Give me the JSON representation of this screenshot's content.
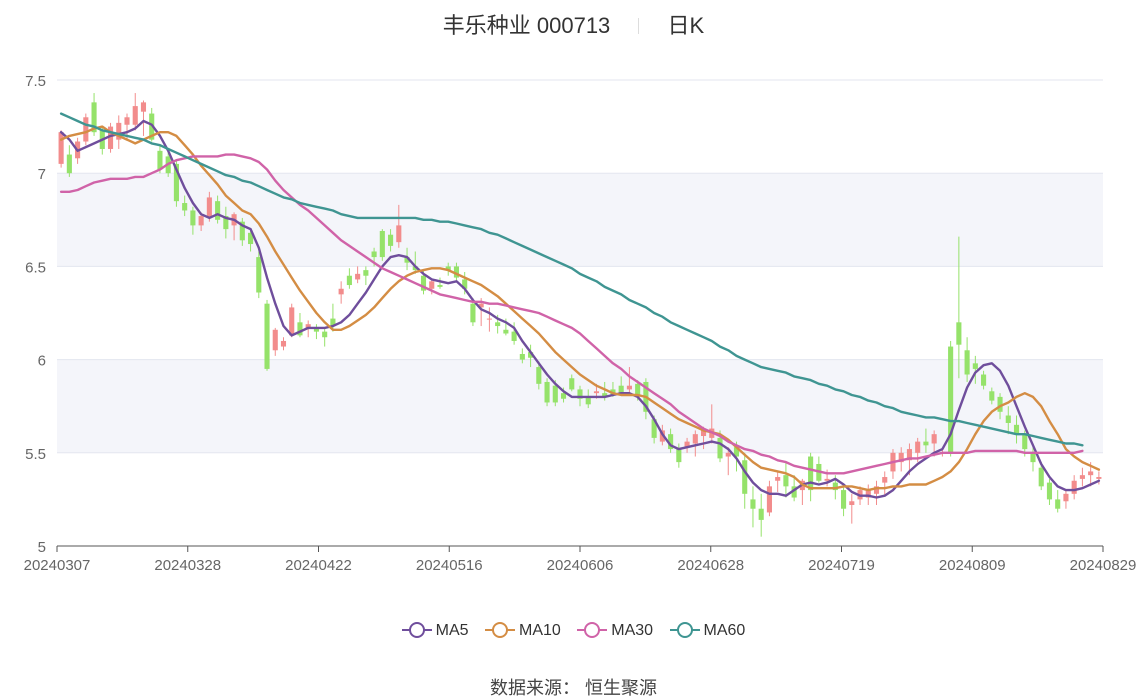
{
  "title": {
    "stock": "丰乐种业 000713",
    "period": "日K"
  },
  "source": "数据来源： 恒生聚源",
  "colors": {
    "up": "#f28c8c",
    "down": "#95e26a",
    "grid": "#e3e6ef",
    "band": "#f4f5fa",
    "axis": "#666666"
  },
  "legend": [
    {
      "label": "MA5",
      "color": "#6f4e9c"
    },
    {
      "label": "MA10",
      "color": "#d48d44"
    },
    {
      "label": "MA30",
      "color": "#d063a8"
    },
    {
      "label": "MA60",
      "color": "#3f9592"
    }
  ],
  "chart_data": {
    "type": "candlestick",
    "title": "丰乐种业 000713 日K",
    "x_tick_labels": [
      "20240307",
      "20240328",
      "20240422",
      "20240516",
      "20240606",
      "20240628",
      "20240719",
      "20240809",
      "20240829"
    ],
    "y_tick_labels": [
      "5",
      "5.5",
      "6",
      "6.5",
      "7",
      "7.5"
    ],
    "ylim": [
      5,
      7.5
    ],
    "candles_ohlc": [
      [
        7.05,
        7.23,
        7.03,
        7.22
      ],
      [
        7.1,
        7.15,
        6.98,
        7.0
      ],
      [
        7.08,
        7.19,
        7.05,
        7.17
      ],
      [
        7.17,
        7.32,
        7.15,
        7.3
      ],
      [
        7.38,
        7.43,
        7.2,
        7.22
      ],
      [
        7.23,
        7.25,
        7.1,
        7.13
      ],
      [
        7.13,
        7.27,
        7.11,
        7.25
      ],
      [
        7.18,
        7.31,
        7.13,
        7.27
      ],
      [
        7.26,
        7.32,
        7.18,
        7.3
      ],
      [
        7.26,
        7.43,
        7.23,
        7.36
      ],
      [
        7.33,
        7.39,
        7.2,
        7.38
      ],
      [
        7.32,
        7.35,
        7.17,
        7.18
      ],
      [
        7.12,
        7.15,
        7.0,
        7.02
      ],
      [
        7.09,
        7.12,
        6.98,
        7.0
      ],
      [
        7.05,
        7.07,
        6.82,
        6.85
      ],
      [
        6.84,
        6.88,
        6.77,
        6.8
      ],
      [
        6.8,
        6.82,
        6.67,
        6.72
      ],
      [
        6.72,
        6.79,
        6.69,
        6.77
      ],
      [
        6.76,
        6.9,
        6.74,
        6.87
      ],
      [
        6.85,
        6.88,
        6.73,
        6.75
      ],
      [
        6.77,
        6.82,
        6.65,
        6.7
      ],
      [
        6.72,
        6.79,
        6.64,
        6.78
      ],
      [
        6.74,
        6.76,
        6.61,
        6.64
      ],
      [
        6.68,
        6.7,
        6.58,
        6.62
      ],
      [
        6.55,
        6.58,
        6.33,
        6.36
      ],
      [
        6.3,
        6.32,
        5.94,
        5.95
      ],
      [
        6.05,
        6.17,
        6.02,
        6.16
      ],
      [
        6.07,
        6.12,
        6.05,
        6.1
      ],
      [
        6.13,
        6.3,
        6.12,
        6.28
      ],
      [
        6.2,
        6.25,
        6.12,
        6.13
      ],
      [
        6.17,
        6.21,
        6.12,
        6.19
      ],
      [
        6.17,
        6.19,
        6.11,
        6.15
      ],
      [
        6.15,
        6.17,
        6.07,
        6.12
      ],
      [
        6.22,
        6.3,
        6.15,
        6.18
      ],
      [
        6.35,
        6.42,
        6.3,
        6.38
      ],
      [
        6.45,
        6.49,
        6.38,
        6.4
      ],
      [
        6.43,
        6.5,
        6.41,
        6.46
      ],
      [
        6.48,
        6.5,
        6.4,
        6.45
      ],
      [
        6.58,
        6.6,
        6.5,
        6.55
      ],
      [
        6.69,
        6.7,
        6.53,
        6.55
      ],
      [
        6.67,
        6.7,
        6.58,
        6.61
      ],
      [
        6.63,
        6.83,
        6.6,
        6.72
      ],
      [
        6.55,
        6.6,
        6.48,
        6.52
      ],
      [
        6.5,
        6.58,
        6.46,
        6.48
      ],
      [
        6.45,
        6.48,
        6.35,
        6.37
      ],
      [
        6.38,
        6.43,
        6.35,
        6.42
      ],
      [
        6.4,
        6.44,
        6.38,
        6.39
      ],
      [
        6.5,
        6.52,
        6.45,
        6.48
      ],
      [
        6.5,
        6.52,
        6.42,
        6.44
      ],
      [
        6.43,
        6.47,
        6.35,
        6.38
      ],
      [
        6.3,
        6.33,
        6.18,
        6.2
      ],
      [
        6.28,
        6.33,
        6.18,
        6.3
      ],
      [
        6.22,
        6.28,
        6.15,
        6.22
      ],
      [
        6.2,
        6.24,
        6.14,
        6.18
      ],
      [
        6.16,
        6.22,
        6.13,
        6.14
      ],
      [
        6.15,
        6.2,
        6.08,
        6.1
      ],
      [
        6.03,
        6.06,
        5.98,
        6.0
      ],
      [
        6.04,
        6.08,
        5.96,
        6.01
      ],
      [
        5.96,
        5.99,
        5.84,
        5.87
      ],
      [
        5.88,
        5.9,
        5.75,
        5.77
      ],
      [
        5.86,
        5.89,
        5.75,
        5.77
      ],
      [
        5.82,
        5.85,
        5.77,
        5.79
      ],
      [
        5.9,
        5.92,
        5.83,
        5.84
      ],
      [
        5.84,
        5.86,
        5.75,
        5.79
      ],
      [
        5.8,
        5.84,
        5.74,
        5.76
      ],
      [
        5.82,
        5.87,
        5.79,
        5.83
      ],
      [
        5.82,
        5.88,
        5.78,
        5.8
      ],
      [
        5.84,
        5.88,
        5.8,
        5.81
      ],
      [
        5.86,
        5.91,
        5.81,
        5.82
      ],
      [
        5.84,
        5.96,
        5.82,
        5.86
      ],
      [
        5.87,
        5.89,
        5.78,
        5.8
      ],
      [
        5.88,
        5.9,
        5.68,
        5.72
      ],
      [
        5.68,
        5.7,
        5.55,
        5.58
      ],
      [
        5.56,
        5.65,
        5.54,
        5.62
      ],
      [
        5.6,
        5.63,
        5.5,
        5.52
      ],
      [
        5.52,
        5.55,
        5.42,
        5.45
      ],
      [
        5.53,
        5.58,
        5.5,
        5.56
      ],
      [
        5.55,
        5.62,
        5.48,
        5.6
      ],
      [
        5.59,
        5.64,
        5.52,
        5.63
      ],
      [
        5.58,
        5.76,
        5.55,
        5.63
      ],
      [
        5.58,
        5.62,
        5.45,
        5.47
      ],
      [
        5.48,
        5.53,
        5.38,
        5.5
      ],
      [
        5.53,
        5.56,
        5.4,
        5.48
      ],
      [
        5.46,
        5.5,
        5.2,
        5.28
      ],
      [
        5.25,
        5.32,
        5.1,
        5.2
      ],
      [
        5.2,
        5.28,
        5.05,
        5.14
      ],
      [
        5.18,
        5.35,
        5.16,
        5.32
      ],
      [
        5.35,
        5.4,
        5.29,
        5.37
      ],
      [
        5.38,
        5.45,
        5.26,
        5.32
      ],
      [
        5.32,
        5.38,
        5.24,
        5.26
      ],
      [
        5.3,
        5.36,
        5.22,
        5.35
      ],
      [
        5.48,
        5.5,
        5.24,
        5.3
      ],
      [
        5.44,
        5.48,
        5.34,
        5.35
      ],
      [
        5.35,
        5.41,
        5.32,
        5.36
      ],
      [
        5.34,
        5.38,
        5.25,
        5.3
      ],
      [
        5.3,
        5.33,
        5.16,
        5.2
      ],
      [
        5.22,
        5.28,
        5.12,
        5.24
      ],
      [
        5.25,
        5.32,
        5.22,
        5.3
      ],
      [
        5.26,
        5.33,
        5.22,
        5.3
      ],
      [
        5.28,
        5.35,
        5.22,
        5.32
      ],
      [
        5.34,
        5.4,
        5.27,
        5.37
      ],
      [
        5.4,
        5.52,
        5.36,
        5.5
      ],
      [
        5.45,
        5.53,
        5.4,
        5.5
      ],
      [
        5.46,
        5.55,
        5.38,
        5.52
      ],
      [
        5.5,
        5.58,
        5.45,
        5.56
      ],
      [
        5.56,
        5.63,
        5.5,
        5.54
      ],
      [
        5.55,
        5.62,
        5.48,
        5.6
      ],
      [
        5.5,
        5.52,
        5.48,
        5.5
      ],
      [
        6.07,
        6.1,
        5.48,
        5.5
      ],
      [
        6.2,
        6.66,
        5.9,
        6.08
      ],
      [
        6.05,
        6.12,
        5.88,
        5.92
      ],
      [
        5.98,
        6.02,
        5.87,
        5.95
      ],
      [
        5.92,
        5.94,
        5.84,
        5.86
      ],
      [
        5.83,
        5.85,
        5.76,
        5.78
      ],
      [
        5.8,
        5.82,
        5.68,
        5.72
      ],
      [
        5.7,
        5.75,
        5.6,
        5.66
      ],
      [
        5.65,
        5.7,
        5.55,
        5.6
      ],
      [
        5.6,
        5.62,
        5.48,
        5.52
      ],
      [
        5.5,
        5.55,
        5.4,
        5.45
      ],
      [
        5.42,
        5.45,
        5.3,
        5.32
      ],
      [
        5.34,
        5.36,
        5.22,
        5.25
      ],
      [
        5.25,
        5.3,
        5.18,
        5.2
      ],
      [
        5.24,
        5.3,
        5.2,
        5.28
      ],
      [
        5.28,
        5.38,
        5.25,
        5.35
      ],
      [
        5.36,
        5.42,
        5.32,
        5.38
      ],
      [
        5.38,
        5.45,
        5.32,
        5.4
      ],
      [
        5.36,
        5.4,
        5.33,
        5.37
      ]
    ],
    "series": [
      {
        "name": "MA5",
        "values": [
          7.22,
          7.18,
          7.12,
          7.14,
          7.16,
          7.18,
          7.2,
          7.21,
          7.22,
          7.24,
          7.28,
          7.26,
          7.2,
          7.12,
          7.02,
          6.92,
          6.84,
          6.78,
          6.76,
          6.78,
          6.76,
          6.75,
          6.72,
          6.7,
          6.6,
          6.44,
          6.3,
          6.18,
          6.13,
          6.15,
          6.17,
          6.17,
          6.17,
          6.18,
          6.2,
          6.24,
          6.3,
          6.36,
          6.43,
          6.5,
          6.55,
          6.56,
          6.55,
          6.5,
          6.46,
          6.43,
          6.42,
          6.41,
          6.42,
          6.38,
          6.32,
          6.27,
          6.25,
          6.22,
          6.2,
          6.17,
          6.1,
          6.04,
          5.98,
          5.92,
          5.87,
          5.83,
          5.8,
          5.8,
          5.8,
          5.8,
          5.8,
          5.81,
          5.82,
          5.82,
          5.8,
          5.75,
          5.68,
          5.6,
          5.54,
          5.52,
          5.53,
          5.54,
          5.55,
          5.56,
          5.55,
          5.52,
          5.47,
          5.4,
          5.34,
          5.3,
          5.28,
          5.28,
          5.27,
          5.3,
          5.33,
          5.34,
          5.33,
          5.34,
          5.36,
          5.33,
          5.29,
          5.27,
          5.27,
          5.26,
          5.27,
          5.3,
          5.35,
          5.4,
          5.44,
          5.47,
          5.5,
          5.52,
          5.6,
          5.73,
          5.85,
          5.93,
          5.97,
          5.98,
          5.94,
          5.86,
          5.75,
          5.64,
          5.54,
          5.44,
          5.37,
          5.32,
          5.3,
          5.3,
          5.31,
          5.33,
          5.35
        ]
      },
      {
        "name": "MA10",
        "values": [
          7.18,
          7.2,
          7.21,
          7.22,
          7.24,
          7.25,
          7.22,
          7.2,
          7.18,
          7.16,
          7.18,
          7.2,
          7.22,
          7.22,
          7.2,
          7.15,
          7.1,
          7.04,
          6.99,
          6.94,
          6.88,
          6.84,
          6.8,
          6.78,
          6.73,
          6.66,
          6.58,
          6.51,
          6.44,
          6.37,
          6.31,
          6.25,
          6.2,
          6.16,
          6.16,
          6.18,
          6.21,
          6.24,
          6.28,
          6.33,
          6.38,
          6.42,
          6.45,
          6.47,
          6.48,
          6.49,
          6.49,
          6.48,
          6.46,
          6.44,
          6.42,
          6.4,
          6.37,
          6.34,
          6.3,
          6.26,
          6.22,
          6.18,
          6.14,
          6.09,
          6.04,
          6.0,
          5.96,
          5.92,
          5.89,
          5.86,
          5.84,
          5.82,
          5.81,
          5.81,
          5.81,
          5.8,
          5.77,
          5.74,
          5.71,
          5.68,
          5.66,
          5.64,
          5.62,
          5.61,
          5.6,
          5.57,
          5.53,
          5.49,
          5.45,
          5.42,
          5.41,
          5.4,
          5.39,
          5.37,
          5.33,
          5.31,
          5.31,
          5.31,
          5.31,
          5.32,
          5.32,
          5.31,
          5.3,
          5.31,
          5.31,
          5.32,
          5.32,
          5.33,
          5.33,
          5.33,
          5.35,
          5.37,
          5.4,
          5.45,
          5.52,
          5.6,
          5.67,
          5.72,
          5.75,
          5.77,
          5.8,
          5.82,
          5.8,
          5.75,
          5.67,
          5.6,
          5.52,
          5.48,
          5.45,
          5.43,
          5.41
        ]
      },
      {
        "name": "MA30",
        "values": [
          6.9,
          6.9,
          6.91,
          6.93,
          6.95,
          6.96,
          6.97,
          6.97,
          6.97,
          6.98,
          6.98,
          7.0,
          7.02,
          7.05,
          7.07,
          7.08,
          7.09,
          7.09,
          7.09,
          7.09,
          7.1,
          7.1,
          7.09,
          7.08,
          7.06,
          7.02,
          6.96,
          6.91,
          6.87,
          6.83,
          6.8,
          6.76,
          6.72,
          6.68,
          6.64,
          6.61,
          6.58,
          6.55,
          6.52,
          6.49,
          6.47,
          6.45,
          6.43,
          6.41,
          6.39,
          6.37,
          6.35,
          6.34,
          6.33,
          6.32,
          6.31,
          6.31,
          6.3,
          6.3,
          6.29,
          6.28,
          6.27,
          6.26,
          6.25,
          6.23,
          6.21,
          6.19,
          6.17,
          6.14,
          6.1,
          6.06,
          6.02,
          5.98,
          5.95,
          5.91,
          5.88,
          5.85,
          5.82,
          5.79,
          5.76,
          5.72,
          5.69,
          5.66,
          5.63,
          5.61,
          5.59,
          5.56,
          5.54,
          5.52,
          5.51,
          5.49,
          5.48,
          5.46,
          5.45,
          5.43,
          5.42,
          5.41,
          5.4,
          5.39,
          5.39,
          5.39,
          5.4,
          5.41,
          5.42,
          5.43,
          5.44,
          5.45,
          5.46,
          5.47,
          5.47,
          5.48,
          5.49,
          5.5,
          5.5,
          5.5,
          5.5,
          5.51,
          5.51,
          5.51,
          5.51,
          5.51,
          5.51,
          5.5,
          5.5,
          5.5,
          5.5,
          5.5,
          5.5,
          5.5,
          5.51
        ]
      },
      {
        "name": "MA60",
        "values": [
          7.32,
          7.3,
          7.28,
          7.26,
          7.25,
          7.23,
          7.22,
          7.21,
          7.2,
          7.19,
          7.18,
          7.16,
          7.15,
          7.13,
          7.11,
          7.09,
          7.07,
          7.05,
          7.03,
          7.01,
          6.99,
          6.98,
          6.96,
          6.95,
          6.93,
          6.91,
          6.89,
          6.87,
          6.86,
          6.84,
          6.83,
          6.82,
          6.81,
          6.8,
          6.78,
          6.77,
          6.76,
          6.76,
          6.76,
          6.76,
          6.76,
          6.76,
          6.76,
          6.76,
          6.75,
          6.75,
          6.74,
          6.74,
          6.73,
          6.72,
          6.71,
          6.7,
          6.68,
          6.67,
          6.65,
          6.63,
          6.61,
          6.59,
          6.57,
          6.55,
          6.53,
          6.51,
          6.49,
          6.46,
          6.44,
          6.42,
          6.39,
          6.37,
          6.35,
          6.32,
          6.3,
          6.28,
          6.25,
          6.23,
          6.2,
          6.18,
          6.16,
          6.14,
          6.12,
          6.1,
          6.07,
          6.05,
          6.02,
          6.0,
          5.98,
          5.96,
          5.95,
          5.94,
          5.93,
          5.91,
          5.9,
          5.89,
          5.87,
          5.86,
          5.84,
          5.83,
          5.81,
          5.8,
          5.78,
          5.77,
          5.75,
          5.74,
          5.72,
          5.71,
          5.7,
          5.69,
          5.69,
          5.68,
          5.67,
          5.67,
          5.66,
          5.65,
          5.64,
          5.63,
          5.62,
          5.61,
          5.6,
          5.6,
          5.59,
          5.58,
          5.57,
          5.56,
          5.55,
          5.55,
          5.54
        ]
      }
    ]
  }
}
